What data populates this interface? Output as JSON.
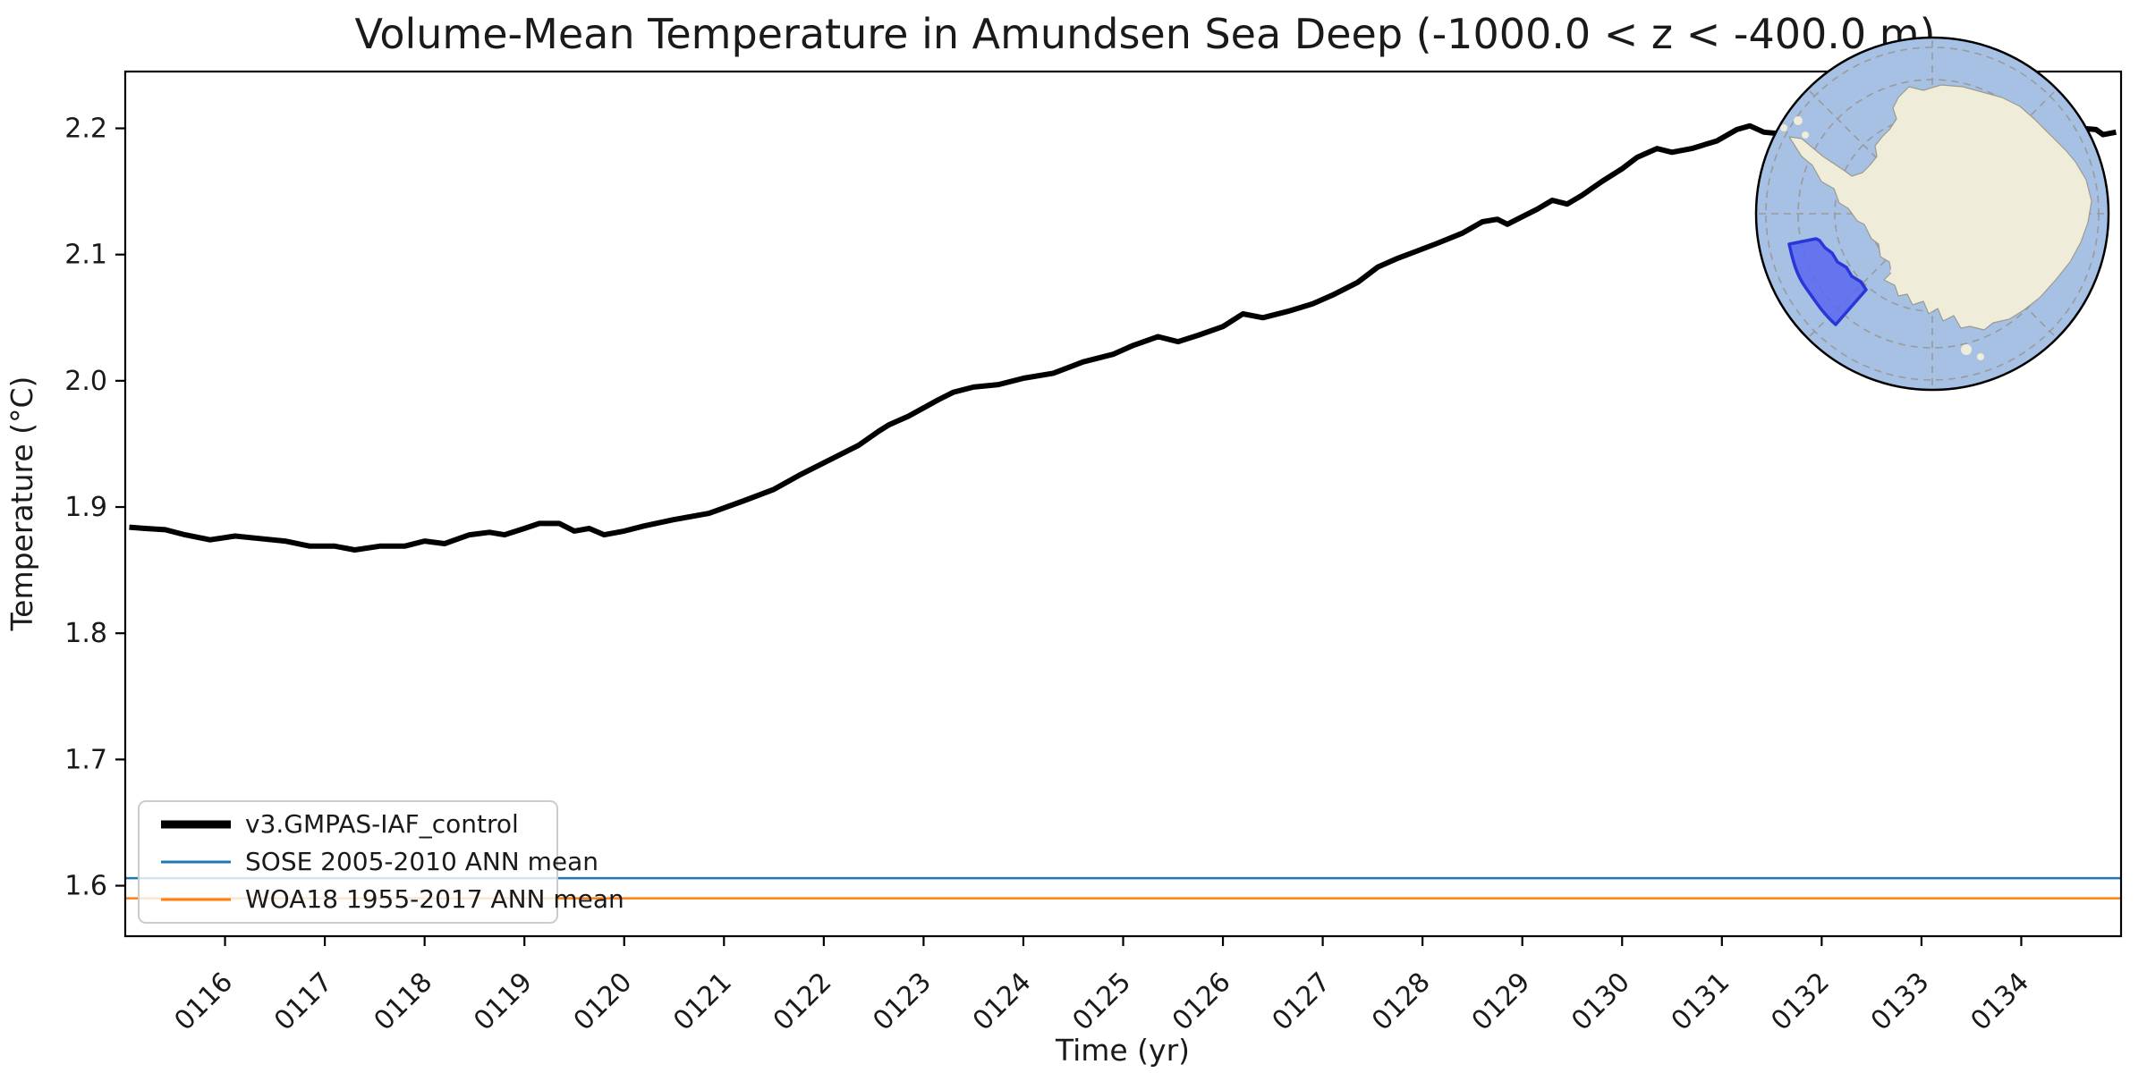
{
  "figure": {
    "kind": "matplotlib time-series figure with polar inset map"
  },
  "chart_data": {
    "type": "line",
    "title": "Volume-Mean Temperature in Amundsen Sea Deep (-1000.0 < z < -400.0 m)",
    "xlabel": "Time (yr)",
    "ylabel": "Temperature (°C)",
    "xlim": [
      115.0,
      135.0
    ],
    "ylim": [
      1.56,
      2.245
    ],
    "grid": false,
    "legend_position": "lower left",
    "xticks": {
      "values": [
        116,
        117,
        118,
        119,
        120,
        121,
        122,
        123,
        124,
        125,
        126,
        127,
        128,
        129,
        130,
        131,
        132,
        133,
        134
      ],
      "labels": [
        "0116",
        "0117",
        "0118",
        "0119",
        "0120",
        "0121",
        "0122",
        "0123",
        "0124",
        "0125",
        "0126",
        "0127",
        "0128",
        "0129",
        "0130",
        "0131",
        "0132",
        "0133",
        "0134"
      ],
      "rotation": 45
    },
    "yticks": {
      "values": [
        1.6,
        1.7,
        1.8,
        1.9,
        2.0,
        2.1,
        2.2
      ],
      "labels": [
        "1.6",
        "1.7",
        "1.8",
        "1.9",
        "2.0",
        "2.1",
        "2.2"
      ]
    },
    "series": [
      {
        "name": "v3.GMPAS-IAF_control",
        "type": "line",
        "color": "#000000",
        "linewidth": 6,
        "x": [
          115.04,
          115.2,
          115.4,
          115.6,
          115.85,
          116.1,
          116.35,
          116.6,
          116.85,
          117.1,
          117.3,
          117.55,
          117.8,
          118.0,
          118.2,
          118.45,
          118.65,
          118.8,
          119.0,
          119.15,
          119.35,
          119.5,
          119.65,
          119.8,
          120.0,
          120.2,
          120.5,
          120.85,
          121.2,
          121.5,
          121.75,
          121.95,
          122.15,
          122.35,
          122.55,
          122.65,
          122.85,
          123.15,
          123.3,
          123.5,
          123.75,
          124.0,
          124.3,
          124.6,
          124.9,
          125.1,
          125.35,
          125.55,
          125.75,
          126.0,
          126.2,
          126.4,
          126.65,
          126.9,
          127.1,
          127.35,
          127.55,
          127.75,
          127.95,
          128.15,
          128.4,
          128.6,
          128.75,
          128.85,
          129.0,
          129.15,
          129.3,
          129.45,
          129.6,
          129.8,
          130.0,
          130.15,
          130.35,
          130.5,
          130.7,
          130.95,
          131.15,
          131.28,
          131.42,
          131.55,
          131.8,
          132.1,
          132.4,
          132.7,
          133.0,
          133.3,
          133.6,
          133.9,
          134.2,
          134.45,
          134.6,
          134.75,
          134.82,
          134.95
        ],
        "y": [
          1.884,
          1.883,
          1.882,
          1.878,
          1.874,
          1.877,
          1.875,
          1.873,
          1.869,
          1.869,
          1.866,
          1.869,
          1.869,
          1.873,
          1.871,
          1.878,
          1.88,
          1.878,
          1.883,
          1.887,
          1.887,
          1.881,
          1.883,
          1.878,
          1.881,
          1.885,
          1.89,
          1.895,
          1.905,
          1.914,
          1.925,
          1.933,
          1.941,
          1.949,
          1.96,
          1.965,
          1.972,
          1.985,
          1.991,
          1.995,
          1.997,
          2.002,
          2.006,
          2.015,
          2.021,
          2.028,
          2.035,
          2.031,
          2.036,
          2.043,
          2.053,
          2.05,
          2.055,
          2.061,
          2.068,
          2.078,
          2.09,
          2.097,
          2.103,
          2.109,
          2.117,
          2.126,
          2.128,
          2.124,
          2.13,
          2.136,
          2.143,
          2.14,
          2.147,
          2.158,
          2.168,
          2.177,
          2.184,
          2.181,
          2.184,
          2.19,
          2.199,
          2.202,
          2.197,
          2.196,
          2.203,
          2.209,
          2.212,
          2.208,
          2.211,
          2.206,
          2.209,
          2.203,
          2.201,
          2.199,
          2.2,
          2.199,
          2.195,
          2.197
        ]
      },
      {
        "name": "SOSE 2005-2010 ANN mean",
        "type": "hline",
        "color": "#1f77b4",
        "linewidth": 2.5,
        "y": 1.606
      },
      {
        "name": "WOA18 1955-2017 ANN mean",
        "type": "hline",
        "color": "#ff7f0e",
        "linewidth": 2.5,
        "y": 1.59
      }
    ]
  },
  "inset_map": {
    "description": "South polar stereographic map of Antarctica with the Amundsen Sea region highlighted",
    "colors": {
      "ocean": "#a7c1e5",
      "land": "#efecd9",
      "land_edge": "#9b9b8f",
      "graticule": "#9a9a9a",
      "outline": "#000000",
      "region_fill": "#5967ef",
      "region_edge": "#2b36d9"
    }
  },
  "legend": {
    "border_color": "#cccccc"
  }
}
